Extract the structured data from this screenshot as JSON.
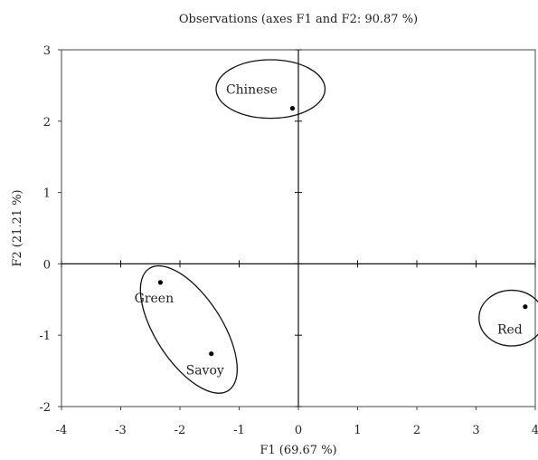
{
  "chart_data": {
    "type": "scatter",
    "title": "Observations (axes F1 and F2: 90.87 %)",
    "xlabel": "F1 (69.67 %)",
    "ylabel": "F2 (21.21 %)",
    "xlim": [
      -4,
      4
    ],
    "ylim": [
      -2,
      3
    ],
    "x_ticks": [
      -4,
      -3,
      -2,
      -1,
      0,
      1,
      2,
      3,
      4
    ],
    "y_ticks": [
      -2,
      -1,
      0,
      1,
      2,
      3
    ],
    "grid": false,
    "points": [
      {
        "label": "Chinese",
        "x": -0.1,
        "y": 2.18
      },
      {
        "label": "Green",
        "x": -2.33,
        "y": -0.26
      },
      {
        "label": "Savoy",
        "x": -1.47,
        "y": -1.26
      },
      {
        "label": "Red",
        "x": 3.83,
        "y": -0.6
      }
    ],
    "groups": [
      {
        "members": [
          "Chinese"
        ],
        "cx": -0.47,
        "cy": 2.45,
        "rx": 0.92,
        "ry": 0.41,
        "angle": 0
      },
      {
        "members": [
          "Green",
          "Savoy"
        ],
        "cx": -1.85,
        "cy": -0.92,
        "rx": 0.56,
        "ry": 1.02,
        "angle": -33
      },
      {
        "members": [
          "Red"
        ],
        "cx": 3.6,
        "cy": -0.76,
        "rx": 0.55,
        "ry": 0.39,
        "angle": 0
      }
    ],
    "colors": {
      "marks": "#000000",
      "text": "#222222"
    }
  }
}
